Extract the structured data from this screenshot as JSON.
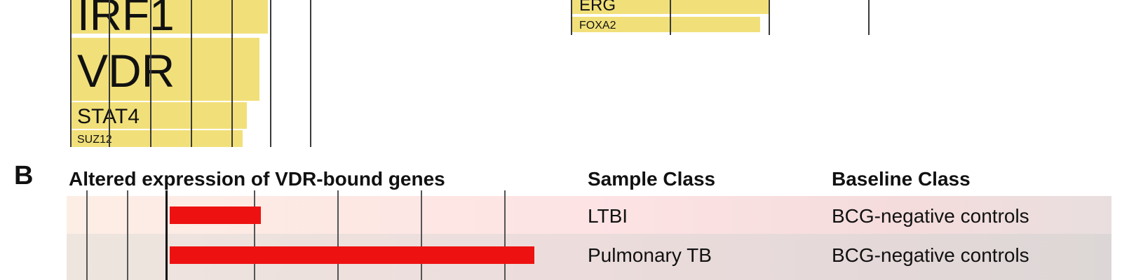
{
  "panel_b": {
    "letter": "B",
    "title": "Altered expression of VDR-bound genes",
    "col_sample": "Sample Class",
    "col_baseline": "Baseline Class"
  },
  "chart_data": [
    {
      "type": "bar",
      "orientation": "horizontal",
      "description_visible": "Top-left panel (cropped) – transcription factor enrichment bars",
      "categories": [
        "IRF1",
        "VDR",
        "STAT4",
        "SUZ12"
      ],
      "values": [
        0.94,
        0.9,
        0.84,
        0.82
      ],
      "value_scale": "fraction of visible bar extent"
    },
    {
      "type": "bar",
      "orientation": "horizontal",
      "description_visible": "Top-right panel (cropped) – transcription factor enrichment bars",
      "categories": [
        "ERG",
        "FOXA2"
      ],
      "values": [
        0.98,
        0.93
      ],
      "value_scale": "fraction of visible bar extent"
    },
    {
      "type": "bar",
      "orientation": "horizontal",
      "title": "Altered expression of VDR-bound genes",
      "categories": [
        "LTBI",
        "Pulmonary TB"
      ],
      "values": [
        0.25,
        1.0
      ],
      "value_scale": "relative bar length",
      "table": {
        "columns": [
          "Sample Class",
          "Baseline Class"
        ],
        "rows": [
          [
            "LTBI",
            "BCG-negative controls"
          ],
          [
            "Pulmonary TB",
            "BCG-negative controls"
          ]
        ]
      }
    }
  ]
}
